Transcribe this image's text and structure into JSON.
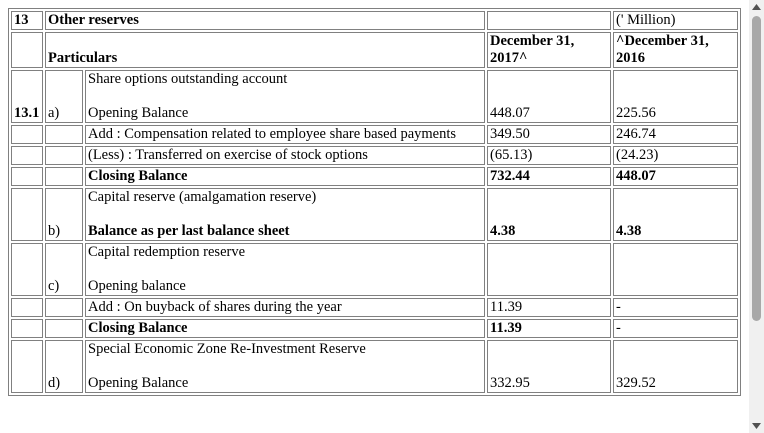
{
  "header": {
    "note_no": "13",
    "note_title": "Other reserves",
    "unit": "(' Million)",
    "particulars_label": "Particulars",
    "col_current": "December 31, 2017^",
    "col_prior": "^December 31, 2016"
  },
  "sections": {
    "a": {
      "number": "13.1",
      "letter": "a)",
      "title": "Share options outstanding account",
      "opening_label": "Opening Balance",
      "opening_current": "448.07",
      "opening_prior": "225.56",
      "add_label": "Add : Compensation related to employee share based payments",
      "add_current": "349.50",
      "add_prior": "246.74",
      "less_label": "(Less) : Transferred on exercise of stock options",
      "less_current": "(65.13)",
      "less_prior": "(24.23)",
      "closing_label": "Closing Balance",
      "closing_current": "732.44",
      "closing_prior": "448.07"
    },
    "b": {
      "letter": "b)",
      "title": "Capital reserve (amalgamation reserve)",
      "balance_label": "Balance as per last balance sheet",
      "balance_current": "4.38",
      "balance_prior": "4.38"
    },
    "c": {
      "letter": "c)",
      "title": "Capital redemption reserve",
      "opening_label": "Opening balance",
      "add_label": "Add : On buyback of shares during the year",
      "add_current": "11.39",
      "add_prior": "-",
      "closing_label": "Closing Balance",
      "closing_current": "11.39",
      "closing_prior": "-"
    },
    "d": {
      "letter": "d)",
      "title": "Special Economic Zone Re-Investment Reserve",
      "opening_label": "Opening Balance",
      "opening_current": "332.95",
      "opening_prior": "329.52"
    }
  },
  "icons": {
    "scroll_up": "triangle-up-icon",
    "scroll_down": "triangle-down-icon"
  }
}
